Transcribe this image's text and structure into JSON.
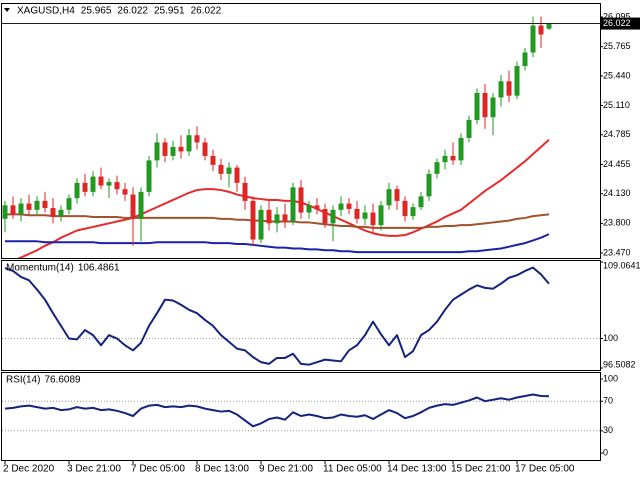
{
  "chart_data": [
    {
      "type": "candlestick",
      "title": "XAGUSD,H4",
      "categories": [
        "2 Dec 2020",
        null,
        null,
        null,
        null,
        null,
        null,
        null,
        "3 Dec 21:00",
        null,
        null,
        null,
        null,
        null,
        null,
        null,
        "7 Dec 05:00",
        null,
        null,
        null,
        null,
        null,
        null,
        null,
        "8 Dec 13:00",
        null,
        null,
        null,
        null,
        null,
        null,
        null,
        "9 Dec 21:00",
        null,
        null,
        null,
        null,
        null,
        null,
        null,
        "11 Dec 05:00",
        null,
        null,
        null,
        null,
        null,
        null,
        null,
        "14 Dec 13:00",
        null,
        null,
        null,
        null,
        null,
        null,
        null,
        "15 Dec 21:00",
        null,
        null,
        null,
        null,
        null,
        null,
        null,
        "17 Dec 05:00",
        null,
        null,
        null,
        null
      ],
      "open": [
        23.85,
        24.0,
        23.9,
        24.02,
        23.95,
        24.05,
        23.97,
        23.88,
        23.95,
        24.08,
        24.25,
        24.15,
        24.32,
        24.22,
        24.26,
        24.18,
        24.12,
        23.85,
        24.15,
        24.5,
        24.7,
        24.55,
        24.65,
        24.6,
        24.78,
        24.7,
        24.55,
        24.45,
        24.35,
        24.42,
        24.25,
        24.05,
        23.62,
        23.95,
        23.8,
        23.9,
        23.82,
        24.2,
        23.92,
        24.0,
        23.96,
        23.8,
        23.95,
        24.02,
        23.96,
        23.85,
        23.92,
        23.78,
        24.0,
        24.18,
        24.05,
        23.88,
        23.98,
        24.1,
        24.35,
        24.48,
        24.55,
        24.5,
        24.75,
        24.95,
        25.25,
        24.98,
        25.2,
        25.38,
        25.22,
        25.55,
        25.7,
        26.0,
        25.965
      ],
      "high": [
        24.05,
        24.1,
        24.08,
        24.12,
        24.1,
        24.15,
        24.08,
        24.0,
        24.12,
        24.3,
        24.35,
        24.38,
        24.42,
        24.3,
        24.33,
        24.25,
        24.2,
        24.2,
        24.55,
        24.8,
        24.75,
        24.72,
        24.78,
        24.85,
        24.88,
        24.75,
        24.62,
        24.52,
        24.48,
        24.45,
        24.32,
        24.1,
        24.0,
        24.05,
        23.98,
        24.02,
        24.25,
        24.28,
        24.05,
        24.08,
        24.02,
        24.0,
        24.1,
        24.08,
        24.05,
        24.0,
        24.02,
        24.05,
        24.25,
        24.22,
        24.1,
        24.02,
        24.15,
        24.4,
        24.52,
        24.62,
        24.7,
        24.8,
        25.0,
        25.3,
        25.35,
        25.25,
        25.45,
        25.5,
        25.6,
        25.75,
        26.1,
        26.1,
        26.022
      ],
      "low": [
        23.7,
        23.85,
        23.82,
        23.9,
        23.88,
        23.92,
        23.8,
        23.82,
        23.9,
        24.02,
        24.1,
        24.1,
        24.18,
        24.08,
        24.12,
        24.05,
        23.55,
        23.6,
        24.1,
        24.42,
        24.48,
        24.5,
        24.52,
        24.55,
        24.62,
        24.5,
        24.38,
        24.28,
        24.2,
        24.15,
        23.95,
        23.55,
        23.58,
        23.72,
        23.7,
        23.75,
        23.78,
        23.85,
        23.85,
        23.9,
        23.75,
        23.6,
        23.88,
        23.9,
        23.8,
        23.78,
        23.68,
        23.72,
        23.95,
        23.95,
        23.82,
        23.84,
        23.95,
        24.05,
        24.3,
        24.4,
        24.45,
        24.45,
        24.7,
        24.9,
        24.85,
        24.78,
        25.1,
        25.15,
        25.18,
        25.5,
        25.65,
        25.75,
        25.951
      ],
      "close": [
        24.0,
        23.9,
        24.02,
        23.95,
        24.05,
        23.97,
        23.88,
        23.95,
        24.08,
        24.25,
        24.15,
        24.32,
        24.22,
        24.26,
        24.18,
        24.12,
        23.85,
        24.15,
        24.5,
        24.7,
        24.55,
        24.65,
        24.6,
        24.78,
        24.7,
        24.55,
        24.45,
        24.35,
        24.42,
        24.25,
        24.05,
        23.62,
        23.95,
        23.8,
        23.9,
        23.82,
        24.2,
        23.92,
        24.0,
        23.96,
        23.8,
        23.95,
        24.02,
        23.96,
        23.85,
        23.92,
        23.78,
        24.0,
        24.18,
        24.05,
        23.88,
        23.98,
        24.1,
        24.35,
        24.48,
        24.55,
        24.5,
        24.75,
        24.95,
        25.25,
        24.98,
        25.2,
        25.38,
        25.22,
        25.55,
        25.7,
        26.0,
        25.9,
        26.022
      ],
      "up_color": "#1f9a1f",
      "down_color": "#e02525",
      "series": [
        {
          "color": "#e82a2a",
          "values": [
            23.34,
            23.38,
            23.42,
            23.46,
            23.5,
            23.55,
            23.59,
            23.64,
            23.68,
            23.72,
            23.74,
            23.76,
            23.78,
            23.8,
            23.82,
            23.84,
            23.86,
            23.9,
            23.94,
            23.98,
            24.02,
            24.06,
            24.1,
            24.14,
            24.17,
            24.18,
            24.18,
            24.17,
            24.15,
            24.12,
            24.1,
            24.08,
            24.07,
            24.06,
            24.06,
            24.05,
            24.05,
            24.03,
            24.0,
            23.96,
            23.92,
            23.88,
            23.84,
            23.8,
            23.76,
            23.72,
            23.69,
            23.67,
            23.66,
            23.66,
            23.67,
            23.7,
            23.74,
            23.78,
            23.82,
            23.87,
            23.91,
            23.95,
            24.02,
            24.09,
            24.16,
            24.22,
            24.28,
            24.35,
            24.42,
            24.49,
            24.57,
            24.65,
            24.73
          ]
        },
        {
          "color": "#a0522d",
          "values": [
            23.9,
            23.9,
            23.9,
            23.89,
            23.89,
            23.89,
            23.88,
            23.88,
            23.88,
            23.88,
            23.88,
            23.87,
            23.87,
            23.87,
            23.87,
            23.86,
            23.86,
            23.86,
            23.86,
            23.86,
            23.86,
            23.86,
            23.86,
            23.86,
            23.86,
            23.86,
            23.86,
            23.85,
            23.85,
            23.84,
            23.84,
            23.83,
            23.83,
            23.82,
            23.82,
            23.82,
            23.82,
            23.81,
            23.81,
            23.8,
            23.79,
            23.78,
            23.77,
            23.77,
            23.76,
            23.76,
            23.75,
            23.75,
            23.75,
            23.75,
            23.75,
            23.75,
            23.75,
            23.76,
            23.76,
            23.77,
            23.77,
            23.78,
            23.78,
            23.79,
            23.8,
            23.81,
            23.82,
            23.83,
            23.85,
            23.86,
            23.88,
            23.89,
            23.9
          ]
        },
        {
          "color": "#1c22a8",
          "values": [
            23.6,
            23.6,
            23.6,
            23.6,
            23.6,
            23.59,
            23.59,
            23.59,
            23.59,
            23.59,
            23.59,
            23.59,
            23.58,
            23.58,
            23.58,
            23.58,
            23.58,
            23.58,
            23.58,
            23.59,
            23.59,
            23.59,
            23.59,
            23.59,
            23.59,
            23.59,
            23.58,
            23.58,
            23.58,
            23.57,
            23.57,
            23.56,
            23.55,
            23.54,
            23.53,
            23.53,
            23.52,
            23.52,
            23.51,
            23.51,
            23.5,
            23.5,
            23.49,
            23.49,
            23.48,
            23.48,
            23.48,
            23.48,
            23.48,
            23.48,
            23.48,
            23.48,
            23.48,
            23.48,
            23.48,
            23.48,
            23.48,
            23.48,
            23.49,
            23.49,
            23.5,
            23.51,
            23.52,
            23.54,
            23.56,
            23.58,
            23.61,
            23.64,
            23.68
          ]
        }
      ],
      "ylim": [
        23.47,
        26.095
      ],
      "yticks": [
        {
          "value": 23.47,
          "label": "23.470"
        },
        {
          "value": 23.8,
          "label": "23.800"
        },
        {
          "value": 24.13,
          "label": "24.130"
        },
        24.455,
        24.785,
        {
          "value": 25.11,
          "label": "25.110"
        },
        {
          "value": 25.44,
          "label": "25.440"
        },
        25.765,
        26.095
      ],
      "grid": false
    },
    {
      "type": "line",
      "title": "Momentum(14)",
      "series": [
        {
          "color": "#14237e",
          "values": [
            108.35,
            108.0,
            107.3,
            106.9,
            105.8,
            104.6,
            103.0,
            101.5,
            100.0,
            99.9,
            101.0,
            100.4,
            99.2,
            100.4,
            100.0,
            99.2,
            98.6,
            99.5,
            101.5,
            103.0,
            104.6,
            104.5,
            104.0,
            103.4,
            103.0,
            102.2,
            101.5,
            100.4,
            99.6,
            98.8,
            98.6,
            97.8,
            97.2,
            97.0,
            97.7,
            97.7,
            98.2,
            97.0,
            96.9,
            97.2,
            97.5,
            97.4,
            97.3,
            98.6,
            99.2,
            100.4,
            102.0,
            100.5,
            99.2,
            100.4,
            97.8,
            98.5,
            100.4,
            101.0,
            102.0,
            103.4,
            104.6,
            105.2,
            105.8,
            106.3,
            106.0,
            105.9,
            106.5,
            107.2,
            107.5,
            108.0,
            108.4,
            107.6,
            106.4861
          ]
        }
      ],
      "ylim": [
        96.5082,
        109.0641
      ],
      "yticks": [
        96.5082,
        100,
        109.0641
      ],
      "grid": true
    },
    {
      "type": "line",
      "title": "RSI(14)",
      "series": [
        {
          "color": "#14237e",
          "values": [
            60,
            61,
            63,
            64,
            62,
            60,
            61,
            58,
            59,
            62,
            60,
            61,
            58,
            59,
            57,
            54,
            50,
            60,
            64,
            65,
            62,
            63,
            62,
            64,
            63,
            60,
            58,
            56,
            57,
            52,
            44,
            36,
            40,
            46,
            48,
            45,
            55,
            50,
            52,
            50,
            47,
            48,
            52,
            50,
            49,
            51,
            46,
            52,
            58,
            54,
            47,
            50,
            55,
            61,
            64,
            66,
            65,
            68,
            71,
            75,
            70,
            72,
            74,
            72,
            75,
            77,
            79,
            77,
            76.6089
          ]
        }
      ],
      "ylim": [
        0,
        100
      ],
      "yticks": [
        0,
        30,
        70,
        100
      ],
      "grid": true
    }
  ]
}
